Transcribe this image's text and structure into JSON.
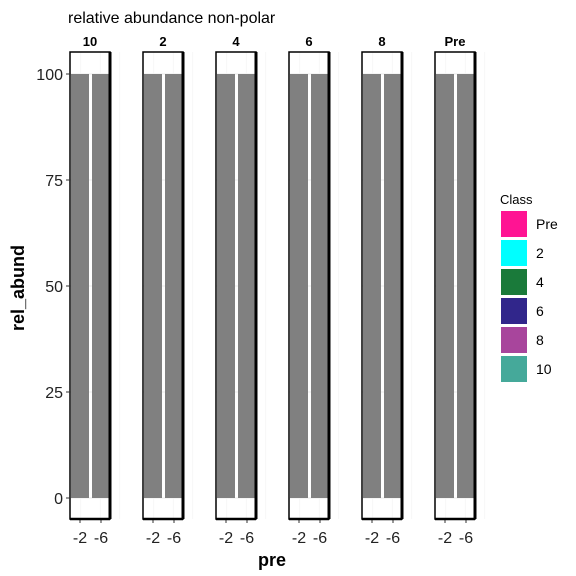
{
  "chart_data": {
    "type": "bar",
    "title": "relative abundance non-polar",
    "xlabel": "pre",
    "ylabel": "rel_abund",
    "ylim": [
      0,
      105
    ],
    "yticks": [
      0,
      25,
      50,
      75,
      100
    ],
    "facets": [
      "10",
      "2",
      "4",
      "6",
      "8",
      "Pre"
    ],
    "categories": [
      "-2",
      "-6"
    ],
    "values": [
      [
        100,
        100
      ],
      [
        100,
        100
      ],
      [
        100,
        100
      ],
      [
        100,
        100
      ],
      [
        100,
        100
      ],
      [
        100,
        100
      ]
    ],
    "bar_color": "#808080",
    "legend": {
      "title": "Class",
      "position": "right",
      "items": [
        {
          "label": "Pre",
          "color": "#FF1493"
        },
        {
          "label": "2",
          "color": "#00FFFF"
        },
        {
          "label": "4",
          "color": "#1A7A3A"
        },
        {
          "label": "6",
          "color": "#31268B"
        },
        {
          "label": "8",
          "color": "#A8459C"
        },
        {
          "label": "10",
          "color": "#45A99A"
        }
      ]
    },
    "grid": true
  }
}
